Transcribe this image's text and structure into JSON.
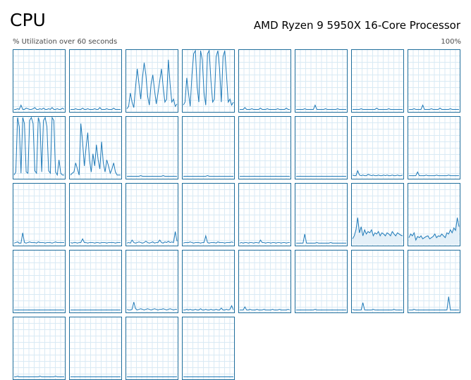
{
  "header": {
    "title": "CPU",
    "processor": "AMD Ryzen 9 5950X 16-Core Processor",
    "subtitle": "% Utilization over 60 seconds",
    "max_label": "100%"
  },
  "colors": {
    "line": "#1f7ab8",
    "border": "#1f6e9c",
    "fill": "#e4f0f8",
    "grid": "#d9eaf4"
  },
  "cores": [
    {
      "u": [
        3,
        3,
        4,
        3,
        10,
        3,
        3,
        5,
        4,
        3,
        3,
        4,
        6,
        3,
        3,
        4,
        3,
        5,
        3,
        3,
        4,
        3,
        6,
        3,
        3,
        4,
        3,
        3,
        5,
        3
      ]
    },
    {
      "u": [
        3,
        3,
        3,
        4,
        3,
        3,
        3,
        5,
        3,
        3,
        4,
        3,
        3,
        3,
        4,
        3,
        3,
        6,
        3,
        3,
        3,
        4,
        3,
        3,
        3,
        5,
        3,
        3,
        3,
        3
      ]
    },
    {
      "u": [
        4,
        8,
        30,
        15,
        6,
        40,
        70,
        45,
        20,
        55,
        80,
        60,
        25,
        10,
        45,
        60,
        35,
        12,
        30,
        50,
        70,
        40,
        15,
        20,
        85,
        45,
        15,
        20,
        8,
        12
      ]
    },
    {
      "u": [
        10,
        15,
        55,
        30,
        8,
        60,
        95,
        100,
        40,
        15,
        100,
        85,
        30,
        10,
        95,
        100,
        50,
        15,
        20,
        90,
        100,
        70,
        15,
        90,
        100,
        60,
        15,
        20,
        10,
        15
      ]
    },
    {
      "u": [
        3,
        3,
        3,
        6,
        3,
        3,
        3,
        4,
        3,
        3,
        3,
        3,
        5,
        3,
        3,
        3,
        4,
        3,
        3,
        3,
        3,
        3,
        4,
        3,
        3,
        3,
        3,
        5,
        3,
        3
      ]
    },
    {
      "u": [
        3,
        3,
        3,
        3,
        3,
        4,
        3,
        3,
        3,
        3,
        3,
        10,
        3,
        3,
        3,
        3,
        3,
        4,
        3,
        3,
        3,
        3,
        3,
        3,
        4,
        3,
        3,
        3,
        3,
        3
      ]
    },
    {
      "u": [
        3,
        3,
        3,
        3,
        3,
        4,
        3,
        3,
        3,
        3,
        3,
        3,
        3,
        3,
        5,
        3,
        3,
        3,
        3,
        3,
        3,
        4,
        3,
        3,
        3,
        3,
        3,
        3,
        3,
        3
      ]
    },
    {
      "u": [
        3,
        3,
        3,
        4,
        3,
        3,
        3,
        3,
        10,
        3,
        3,
        3,
        3,
        4,
        3,
        3,
        3,
        3,
        5,
        3,
        3,
        3,
        3,
        3,
        4,
        3,
        3,
        3,
        3,
        3
      ]
    },
    {
      "u": [
        5,
        10,
        100,
        85,
        8,
        100,
        90,
        10,
        8,
        95,
        100,
        90,
        12,
        8,
        100,
        90,
        10,
        95,
        100,
        85,
        12,
        8,
        100,
        95,
        10,
        5,
        30,
        8,
        5,
        5
      ]
    },
    {
      "u": [
        5,
        8,
        10,
        25,
        15,
        5,
        90,
        60,
        20,
        50,
        75,
        30,
        10,
        40,
        20,
        55,
        30,
        15,
        60,
        25,
        10,
        30,
        20,
        8,
        15,
        25,
        10,
        5,
        5,
        5
      ]
    },
    {
      "u": [
        3,
        3,
        3,
        3,
        3,
        3,
        3,
        3,
        4,
        3,
        3,
        3,
        3,
        3,
        3,
        3,
        3,
        3,
        3,
        3,
        3,
        4,
        3,
        3,
        3,
        3,
        3,
        3,
        3,
        3
      ]
    },
    {
      "u": [
        3,
        3,
        3,
        3,
        3,
        3,
        3,
        3,
        3,
        3,
        3,
        3,
        3,
        3,
        4,
        3,
        3,
        3,
        3,
        3,
        3,
        3,
        3,
        3,
        3,
        3,
        3,
        3,
        3,
        3
      ]
    },
    {
      "u": [
        3,
        3,
        3,
        3,
        3,
        3,
        3,
        3,
        3,
        3,
        3,
        3,
        3,
        3,
        3,
        3,
        3,
        3,
        3,
        3,
        3,
        3,
        3,
        3,
        3,
        3,
        3,
        3,
        3,
        3
      ]
    },
    {
      "u": [
        3,
        3,
        3,
        3,
        3,
        3,
        3,
        3,
        3,
        3,
        3,
        3,
        3,
        3,
        3,
        3,
        3,
        3,
        3,
        3,
        3,
        3,
        3,
        3,
        3,
        3,
        3,
        3,
        3,
        3
      ]
    },
    {
      "u": [
        5,
        4,
        4,
        12,
        5,
        4,
        5,
        4,
        4,
        6,
        5,
        4,
        5,
        4,
        4,
        5,
        4,
        4,
        5,
        4,
        5,
        4,
        4,
        5,
        4,
        4,
        5,
        4,
        4,
        5
      ]
    },
    {
      "u": [
        4,
        4,
        4,
        4,
        4,
        10,
        4,
        4,
        4,
        4,
        5,
        4,
        4,
        4,
        4,
        4,
        5,
        4,
        4,
        4,
        4,
        4,
        4,
        5,
        4,
        4,
        4,
        4,
        4,
        4
      ]
    },
    {
      "u": [
        3,
        4,
        5,
        3,
        3,
        20,
        4,
        3,
        4,
        5,
        4,
        4,
        4,
        3,
        5,
        4,
        4,
        4,
        3,
        4,
        4,
        4,
        3,
        4,
        5,
        4,
        4,
        4,
        4,
        4
      ]
    },
    {
      "u": [
        4,
        3,
        4,
        4,
        3,
        4,
        4,
        10,
        4,
        4,
        3,
        4,
        4,
        4,
        3,
        4,
        4,
        3,
        4,
        4,
        4,
        3,
        4,
        4,
        4,
        4,
        3,
        4,
        4,
        4
      ]
    },
    {
      "u": [
        3,
        4,
        3,
        8,
        4,
        3,
        4,
        5,
        4,
        3,
        4,
        6,
        4,
        3,
        4,
        5,
        3,
        4,
        4,
        8,
        4,
        3,
        5,
        4,
        6,
        4,
        5,
        4,
        22,
        6
      ]
    },
    {
      "u": [
        3,
        4,
        4,
        4,
        5,
        4,
        3,
        4,
        4,
        4,
        3,
        4,
        4,
        15,
        4,
        3,
        4,
        4,
        4,
        3,
        5,
        4,
        4,
        4,
        3,
        4,
        4,
        4,
        5,
        4
      ]
    },
    {
      "u": [
        3,
        4,
        3,
        4,
        4,
        3,
        4,
        4,
        3,
        4,
        4,
        3,
        8,
        4,
        4,
        3,
        4,
        4,
        3,
        4,
        4,
        3,
        4,
        4,
        3,
        4,
        4,
        3,
        4,
        4
      ]
    },
    {
      "u": [
        3,
        3,
        3,
        3,
        3,
        18,
        3,
        3,
        3,
        3,
        3,
        3,
        4,
        3,
        3,
        3,
        3,
        3,
        3,
        3,
        4,
        3,
        3,
        3,
        3,
        3,
        3,
        3,
        3,
        3
      ]
    },
    {
      "u": [
        10,
        15,
        25,
        45,
        20,
        30,
        15,
        25,
        18,
        22,
        20,
        25,
        15,
        20,
        18,
        22,
        15,
        20,
        18,
        15,
        20,
        18,
        15,
        22,
        18,
        15,
        20,
        18,
        16,
        15
      ],
      "fill": true
    },
    {
      "u": [
        12,
        18,
        15,
        20,
        8,
        14,
        12,
        15,
        10,
        12,
        14,
        15,
        10,
        12,
        14,
        18,
        12,
        15,
        14,
        18,
        15,
        12,
        20,
        18,
        25,
        20,
        28,
        24,
        45,
        30
      ],
      "fill": true
    },
    {
      "u": [
        3,
        3,
        3,
        3,
        3,
        3,
        3,
        3,
        3,
        3,
        3,
        3,
        3,
        3,
        3,
        3,
        3,
        3,
        3,
        3,
        3,
        3,
        3,
        3,
        3,
        3,
        3,
        3,
        3,
        3
      ]
    },
    {
      "u": [
        3,
        3,
        3,
        3,
        3,
        3,
        3,
        3,
        3,
        3,
        3,
        3,
        3,
        3,
        3,
        3,
        3,
        3,
        3,
        3,
        3,
        3,
        3,
        3,
        3,
        3,
        3,
        3,
        3,
        3
      ]
    },
    {
      "u": [
        4,
        3,
        3,
        4,
        16,
        5,
        3,
        4,
        5,
        4,
        3,
        4,
        5,
        4,
        3,
        4,
        5,
        4,
        3,
        4,
        4,
        5,
        4,
        3,
        4,
        5,
        4,
        3,
        4,
        4
      ]
    },
    {
      "u": [
        3,
        3,
        4,
        3,
        4,
        3,
        3,
        4,
        3,
        3,
        5,
        3,
        3,
        4,
        3,
        3,
        4,
        3,
        3,
        4,
        3,
        3,
        6,
        3,
        3,
        4,
        3,
        4,
        10,
        3
      ]
    },
    {
      "u": [
        3,
        3,
        3,
        8,
        3,
        3,
        4,
        3,
        3,
        3,
        4,
        3,
        3,
        3,
        4,
        3,
        3,
        3,
        3,
        4,
        3,
        3,
        3,
        4,
        3,
        3,
        3,
        3,
        4,
        3
      ]
    },
    {
      "u": [
        3,
        3,
        3,
        3,
        3,
        3,
        3,
        3,
        3,
        3,
        3,
        4,
        3,
        3,
        3,
        3,
        3,
        3,
        3,
        3,
        3,
        3,
        3,
        3,
        3,
        3,
        3,
        3,
        3,
        3
      ]
    },
    {
      "u": [
        4,
        3,
        3,
        3,
        3,
        3,
        15,
        3,
        3,
        3,
        3,
        3,
        4,
        3,
        3,
        3,
        3,
        3,
        3,
        3,
        3,
        3,
        3,
        3,
        4,
        3,
        3,
        3,
        3,
        3
      ]
    },
    {
      "u": [
        3,
        3,
        3,
        4,
        3,
        3,
        3,
        3,
        3,
        3,
        3,
        3,
        3,
        3,
        3,
        3,
        3,
        3,
        3,
        3,
        3,
        3,
        3,
        25,
        3,
        3,
        3,
        3,
        3,
        3
      ]
    },
    {
      "u": [
        3,
        3,
        4,
        3,
        3,
        3,
        3,
        3,
        3,
        3,
        3,
        3,
        3,
        3,
        3,
        4,
        3,
        3,
        3,
        3,
        3,
        3,
        3,
        3,
        4,
        3,
        3,
        3,
        3,
        3
      ]
    },
    {
      "u": [
        3,
        3,
        3,
        3,
        3,
        3,
        3,
        3,
        3,
        3,
        3,
        3,
        3,
        3,
        3,
        3,
        3,
        3,
        3,
        3,
        3,
        3,
        3,
        3,
        3,
        3,
        3,
        3,
        3,
        3
      ]
    },
    {
      "u": [
        3,
        3,
        3,
        3,
        3,
        3,
        3,
        3,
        3,
        3,
        3,
        3,
        3,
        3,
        3,
        3,
        3,
        3,
        3,
        3,
        3,
        3,
        3,
        3,
        3,
        3,
        3,
        3,
        3,
        3
      ]
    },
    {
      "u": [
        3,
        3,
        3,
        3,
        3,
        3,
        3,
        3,
        3,
        3,
        3,
        3,
        3,
        3,
        3,
        3,
        3,
        3,
        3,
        3,
        3,
        3,
        3,
        3,
        3,
        3,
        3,
        3,
        3,
        3
      ]
    }
  ]
}
